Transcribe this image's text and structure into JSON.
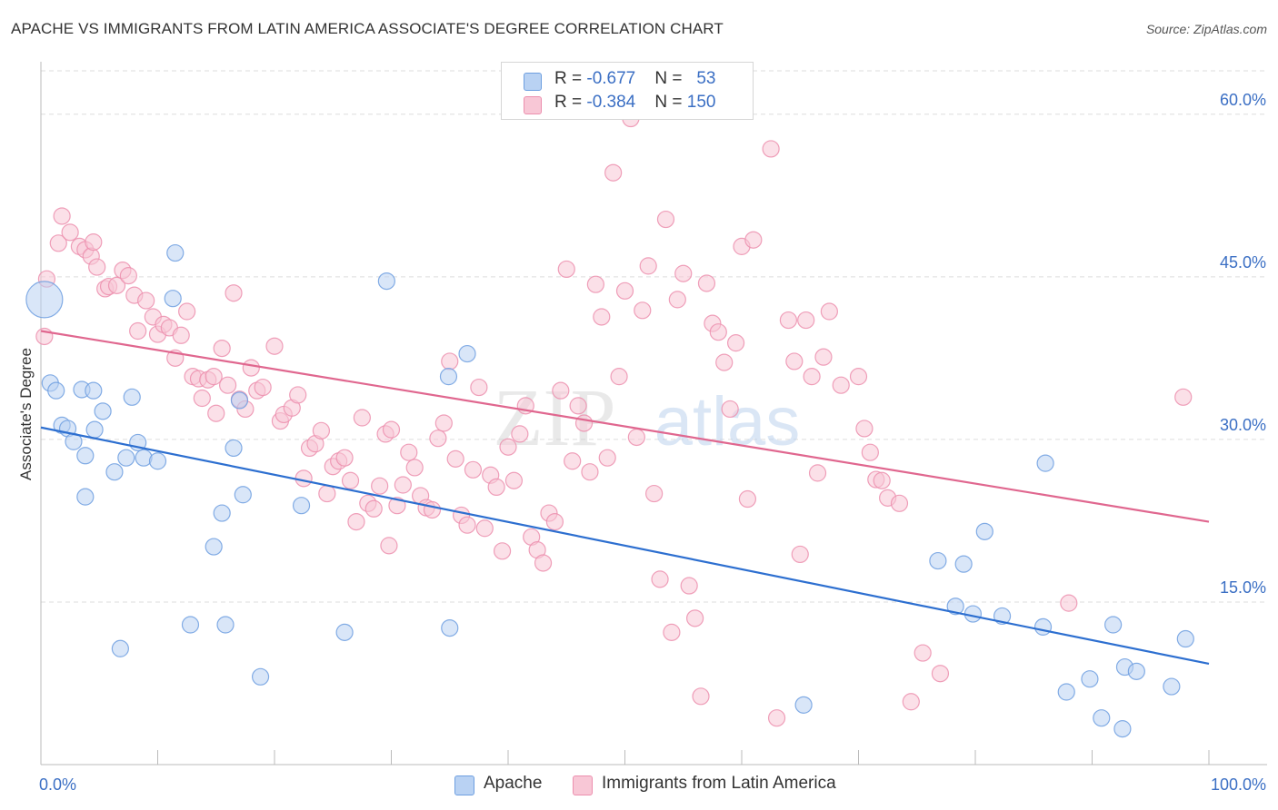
{
  "title": "APACHE VS IMMIGRANTS FROM LATIN AMERICA ASSOCIATE'S DEGREE CORRELATION CHART",
  "source": "Source: ZipAtlas.com",
  "watermark": {
    "zip": "ZIP",
    "atlas": "atlas"
  },
  "legend": {
    "rows": [
      {
        "r_label": "R = ",
        "r_value": "-0.677",
        "n_label": "N = ",
        "n_value": "53",
        "color": "#7aaae8"
      },
      {
        "r_label": "R = ",
        "r_value": "-0.384",
        "n_label": "N = ",
        "n_value": "150",
        "color": "#f4a6bf"
      }
    ]
  },
  "colors": {
    "apache_fill": "#b9d2f3",
    "apache_stroke": "#6e9fe0",
    "apache_line": "#2d6fd0",
    "latin_fill": "#f8c7d6",
    "latin_stroke": "#ec8fae",
    "latin_line": "#e0678f",
    "axis_text": "#3b6fc4",
    "grid": "#dddddd"
  },
  "chart_data": {
    "type": "scatter",
    "title": "APACHE VS IMMIGRANTS FROM LATIN AMERICA ASSOCIATE'S DEGREE CORRELATION CHART",
    "xlabel": "",
    "ylabel": "Associate's Degree",
    "xlim": [
      0,
      100
    ],
    "ylim": [
      0,
      64
    ],
    "x_tick_labels": [
      {
        "value": 0,
        "label": "0.0%"
      },
      {
        "value": 100,
        "label": "100.0%"
      }
    ],
    "y_ticks": [
      {
        "value": 15,
        "label": "15.0%"
      },
      {
        "value": 30,
        "label": "30.0%"
      },
      {
        "value": 45,
        "label": "45.0%"
      },
      {
        "value": 60,
        "label": "60.0%"
      }
    ],
    "grid": true,
    "legend_position": "bottom",
    "series": [
      {
        "name": "Apache",
        "color": "#7aaae8",
        "trend": {
          "x": [
            0,
            100
          ],
          "y": [
            31.1,
            9.3
          ]
        },
        "points": [
          [
            0.3,
            42.9,
            "big"
          ],
          [
            0.8,
            35.2
          ],
          [
            1.3,
            34.5
          ],
          [
            1.8,
            31.3
          ],
          [
            2.3,
            31.0
          ],
          [
            2.8,
            29.8
          ],
          [
            3.5,
            34.6
          ],
          [
            3.8,
            28.5
          ],
          [
            4.6,
            30.9
          ],
          [
            3.8,
            24.7
          ],
          [
            4.5,
            34.5
          ],
          [
            5.3,
            32.6
          ],
          [
            6.3,
            27.0
          ],
          [
            7.3,
            28.3
          ],
          [
            7.8,
            33.9
          ],
          [
            8.3,
            29.7
          ],
          [
            8.8,
            28.3
          ],
          [
            10.0,
            28.0
          ],
          [
            11.5,
            47.2
          ],
          [
            11.3,
            43.0
          ],
          [
            12.8,
            12.9
          ],
          [
            14.8,
            20.1
          ],
          [
            15.5,
            23.2
          ],
          [
            15.8,
            12.9
          ],
          [
            16.5,
            29.2
          ],
          [
            17.0,
            33.6
          ],
          [
            17.3,
            24.9
          ],
          [
            18.8,
            8.1
          ],
          [
            22.3,
            23.9
          ],
          [
            26.0,
            12.2
          ],
          [
            29.6,
            44.6
          ],
          [
            34.9,
            35.8
          ],
          [
            36.5,
            37.9
          ],
          [
            35.0,
            12.6
          ],
          [
            6.8,
            10.7
          ],
          [
            65.3,
            5.5
          ],
          [
            76.8,
            18.8
          ],
          [
            79.0,
            18.5
          ],
          [
            78.3,
            14.6
          ],
          [
            79.8,
            13.9
          ],
          [
            80.8,
            21.5
          ],
          [
            82.3,
            13.7
          ],
          [
            86.0,
            27.8
          ],
          [
            85.8,
            12.7
          ],
          [
            87.8,
            6.7
          ],
          [
            89.8,
            7.9
          ],
          [
            90.8,
            4.3
          ],
          [
            91.8,
            12.9
          ],
          [
            92.8,
            9.0
          ],
          [
            93.8,
            8.6
          ],
          [
            96.8,
            7.2
          ],
          [
            98.0,
            11.6
          ],
          [
            92.6,
            3.3
          ]
        ]
      },
      {
        "name": "Immigrants from Latin America",
        "color": "#f4a6bf",
        "trend": {
          "x": [
            0,
            100
          ],
          "y": [
            40.0,
            22.4
          ]
        },
        "points": [
          [
            0.3,
            39.5
          ],
          [
            0.5,
            44.8
          ],
          [
            1.5,
            48.1
          ],
          [
            1.8,
            50.6
          ],
          [
            2.5,
            49.1
          ],
          [
            3.3,
            47.8
          ],
          [
            3.8,
            47.5
          ],
          [
            4.3,
            46.9
          ],
          [
            4.5,
            48.2
          ],
          [
            4.8,
            45.9
          ],
          [
            5.5,
            43.9
          ],
          [
            5.8,
            44.1
          ],
          [
            6.5,
            44.2
          ],
          [
            7.0,
            45.6
          ],
          [
            7.5,
            45.1
          ],
          [
            8.0,
            43.3
          ],
          [
            8.3,
            40.0
          ],
          [
            9.0,
            42.8
          ],
          [
            9.6,
            41.3
          ],
          [
            10.0,
            39.7
          ],
          [
            10.5,
            40.6
          ],
          [
            11.0,
            40.3
          ],
          [
            11.5,
            37.5
          ],
          [
            12.0,
            39.6
          ],
          [
            12.5,
            41.8
          ],
          [
            13.0,
            35.8
          ],
          [
            13.5,
            35.6
          ],
          [
            13.8,
            33.8
          ],
          [
            14.3,
            35.5
          ],
          [
            14.8,
            35.8
          ],
          [
            15.0,
            32.4
          ],
          [
            15.5,
            38.4
          ],
          [
            16.0,
            35.0
          ],
          [
            16.5,
            43.5
          ],
          [
            17.0,
            33.7
          ],
          [
            17.5,
            32.8
          ],
          [
            18.0,
            36.6
          ],
          [
            18.5,
            34.5
          ],
          [
            19.0,
            34.8
          ],
          [
            20.0,
            38.6
          ],
          [
            20.5,
            31.7
          ],
          [
            20.8,
            32.3
          ],
          [
            21.5,
            32.9
          ],
          [
            22.0,
            34.1
          ],
          [
            22.5,
            26.4
          ],
          [
            23.0,
            29.2
          ],
          [
            23.5,
            29.6
          ],
          [
            24.0,
            30.8
          ],
          [
            24.5,
            25.0
          ],
          [
            25.0,
            27.5
          ],
          [
            25.5,
            28.0
          ],
          [
            26.0,
            28.3
          ],
          [
            26.5,
            26.2
          ],
          [
            27.0,
            22.4
          ],
          [
            27.5,
            32.0
          ],
          [
            28.0,
            24.1
          ],
          [
            28.5,
            23.6
          ],
          [
            29.0,
            25.7
          ],
          [
            29.5,
            30.5
          ],
          [
            30.0,
            30.9
          ],
          [
            30.5,
            23.9
          ],
          [
            31.0,
            25.8
          ],
          [
            31.5,
            28.8
          ],
          [
            32.0,
            27.4
          ],
          [
            32.5,
            24.8
          ],
          [
            33.0,
            23.7
          ],
          [
            33.5,
            23.5
          ],
          [
            34.0,
            30.1
          ],
          [
            34.5,
            31.5
          ],
          [
            35.0,
            37.2
          ],
          [
            35.5,
            28.2
          ],
          [
            36.0,
            23.0
          ],
          [
            36.5,
            22.1
          ],
          [
            37.0,
            27.2
          ],
          [
            37.5,
            34.8
          ],
          [
            38.0,
            21.8
          ],
          [
            38.5,
            26.7
          ],
          [
            39.0,
            25.6
          ],
          [
            39.5,
            19.7
          ],
          [
            40.0,
            29.3
          ],
          [
            40.5,
            26.2
          ],
          [
            41.0,
            30.5
          ],
          [
            41.5,
            33.1
          ],
          [
            42.0,
            21.0
          ],
          [
            42.5,
            19.8
          ],
          [
            43.0,
            18.6
          ],
          [
            43.5,
            23.2
          ],
          [
            44.0,
            22.4
          ],
          [
            44.5,
            34.5
          ],
          [
            45.0,
            45.7
          ],
          [
            45.5,
            28.0
          ],
          [
            46.0,
            33.1
          ],
          [
            46.5,
            31.5
          ],
          [
            47.0,
            27.0
          ],
          [
            47.5,
            44.3
          ],
          [
            48.0,
            41.3
          ],
          [
            48.5,
            28.3
          ],
          [
            49.0,
            54.6
          ],
          [
            49.5,
            35.8
          ],
          [
            50.0,
            43.7
          ],
          [
            50.5,
            59.6
          ],
          [
            51.0,
            30.2
          ],
          [
            51.5,
            41.9
          ],
          [
            52.0,
            46.0
          ],
          [
            52.5,
            25.0
          ],
          [
            53.0,
            17.1
          ],
          [
            53.5,
            50.3
          ],
          [
            54.0,
            12.2
          ],
          [
            54.5,
            42.9
          ],
          [
            55.0,
            45.3
          ],
          [
            55.5,
            16.5
          ],
          [
            56.0,
            13.5
          ],
          [
            56.5,
            6.3
          ],
          [
            57.0,
            44.4
          ],
          [
            57.5,
            40.7
          ],
          [
            58.0,
            39.9
          ],
          [
            58.5,
            37.1
          ],
          [
            59.0,
            32.8
          ],
          [
            59.5,
            38.9
          ],
          [
            60.0,
            47.8
          ],
          [
            60.5,
            24.5
          ],
          [
            61.0,
            48.4
          ],
          [
            62.5,
            56.8
          ],
          [
            63.0,
            4.3
          ],
          [
            64.0,
            41.0
          ],
          [
            64.5,
            37.2
          ],
          [
            65.0,
            19.4
          ],
          [
            65.5,
            41.0
          ],
          [
            66.0,
            35.8
          ],
          [
            66.5,
            26.9
          ],
          [
            67.0,
            37.6
          ],
          [
            67.5,
            41.8
          ],
          [
            68.5,
            35.0
          ],
          [
            70.0,
            35.8
          ],
          [
            70.5,
            31.0
          ],
          [
            71.0,
            28.8
          ],
          [
            71.5,
            26.3
          ],
          [
            72.0,
            26.2
          ],
          [
            72.5,
            24.6
          ],
          [
            73.5,
            24.1
          ],
          [
            74.5,
            5.8
          ],
          [
            75.5,
            10.3
          ],
          [
            77.0,
            8.4
          ],
          [
            88.0,
            14.9
          ],
          [
            97.8,
            33.9
          ],
          [
            29.8,
            20.2
          ]
        ]
      }
    ]
  },
  "bottom_legend": [
    {
      "label": "Apache",
      "color": "#b9d2f3",
      "stroke": "#6e9fe0"
    },
    {
      "label": "Immigrants from Latin America",
      "color": "#f8c7d6",
      "stroke": "#ec8fae"
    }
  ]
}
